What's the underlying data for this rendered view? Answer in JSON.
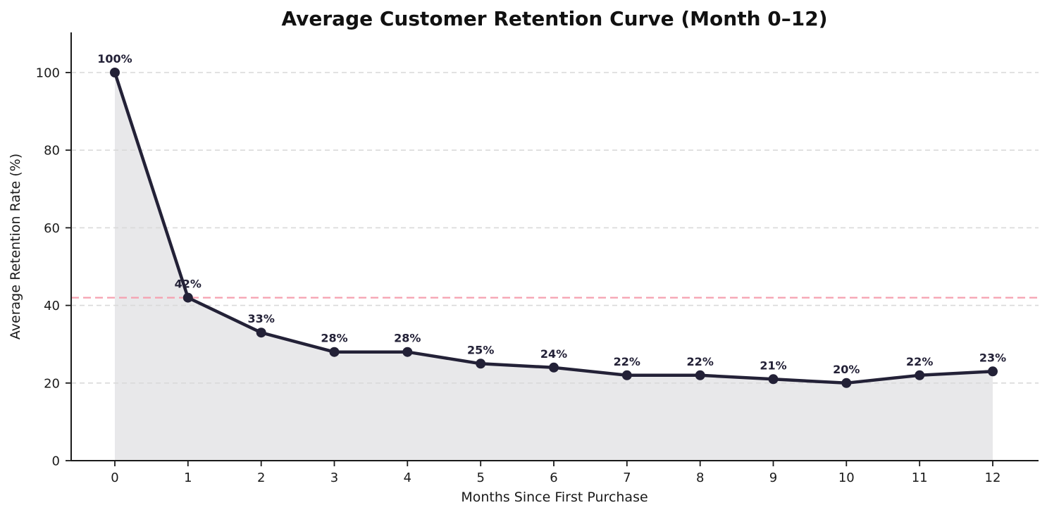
{
  "chart_data": {
    "type": "line",
    "title": "Average Customer Retention Curve (Month 0–12)",
    "xlabel": "Months Since First Purchase",
    "ylabel": "Average Retention Rate (%)",
    "x": [
      0,
      1,
      2,
      3,
      4,
      5,
      6,
      7,
      8,
      9,
      10,
      11,
      12
    ],
    "values": [
      100,
      42,
      33,
      28,
      28,
      25,
      24,
      22,
      22,
      21,
      20,
      22,
      23
    ],
    "point_labels": [
      "100%",
      "42%",
      "33%",
      "28%",
      "28%",
      "25%",
      "24%",
      "22%",
      "22%",
      "21%",
      "20%",
      "22%",
      "23%"
    ],
    "x_tick_labels": [
      "0",
      "1",
      "2",
      "3",
      "4",
      "5",
      "6",
      "7",
      "8",
      "9",
      "10",
      "11",
      "12"
    ],
    "y_tick_values": [
      0,
      20,
      40,
      60,
      80,
      100
    ],
    "y_tick_labels": [
      "0",
      "20",
      "40",
      "60",
      "80",
      "100"
    ],
    "ylim": [
      0,
      110
    ],
    "xlim": [
      -0.6,
      12.63
    ],
    "grid": "horizontal-dashed",
    "legend": "none",
    "area_fill": true,
    "reference_line": {
      "value": 42,
      "style": "dashed"
    },
    "colors": {
      "line": "#232137",
      "marker": "#232137",
      "area": "#e8e8ea",
      "grid": "#d9d9d9",
      "reference": "#f5a0b0",
      "axis": "#1a1a1a",
      "label_text": "#232137",
      "background": "#ffffff"
    }
  }
}
